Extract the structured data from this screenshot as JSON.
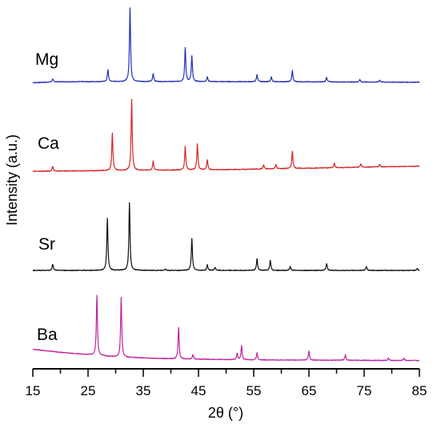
{
  "chart_data": {
    "type": "line",
    "xlabel": "2θ (°)",
    "ylabel": "Intensity (a.u.)",
    "xlim": [
      15,
      85
    ],
    "x_ticks": [
      15,
      25,
      35,
      45,
      55,
      65,
      75,
      85
    ],
    "y_axis_visible": false,
    "grid": false,
    "series": [
      {
        "name": "Mg",
        "color": "#2433b5",
        "baseline": [
          [
            15,
            0.6
          ],
          [
            20,
            1.8
          ],
          [
            30,
            2.0
          ],
          [
            45,
            2.0
          ],
          [
            60,
            1.8
          ],
          [
            70,
            1.6
          ],
          [
            85,
            1.2
          ]
        ],
        "peaks": [
          [
            18.6,
            4
          ],
          [
            28.6,
            15
          ],
          [
            32.6,
            92
          ],
          [
            36.8,
            10
          ],
          [
            42.6,
            42
          ],
          [
            43.8,
            32
          ],
          [
            46.6,
            6
          ],
          [
            55.6,
            9
          ],
          [
            58.2,
            6
          ],
          [
            62.0,
            14
          ],
          [
            68.2,
            6
          ],
          [
            74.2,
            3
          ],
          [
            77.8,
            2.5
          ]
        ]
      },
      {
        "name": "Ca",
        "color": "#d42727",
        "baseline": [
          [
            15,
            0.8
          ],
          [
            30,
            1.8
          ],
          [
            50,
            2.8
          ],
          [
            60,
            4.0
          ],
          [
            70,
            5.2
          ],
          [
            85,
            7.0
          ]
        ],
        "peaks": [
          [
            18.6,
            6
          ],
          [
            29.4,
            45
          ],
          [
            32.9,
            85
          ],
          [
            36.8,
            11
          ],
          [
            42.6,
            28
          ],
          [
            44.8,
            31
          ],
          [
            46.6,
            12
          ],
          [
            56.8,
            5
          ],
          [
            59.0,
            5
          ],
          [
            62.0,
            21
          ],
          [
            69.6,
            6
          ],
          [
            74.4,
            4
          ],
          [
            77.8,
            3
          ]
        ]
      },
      {
        "name": "Sr",
        "color": "#111111",
        "baseline": [
          [
            15,
            0.0
          ],
          [
            85,
            0.0
          ]
        ],
        "peaks": [
          [
            18.6,
            8
          ],
          [
            28.5,
            67
          ],
          [
            32.5,
            86
          ],
          [
            39.0,
            2
          ],
          [
            43.8,
            41
          ],
          [
            46.6,
            7
          ],
          [
            48.0,
            4
          ],
          [
            55.6,
            15
          ],
          [
            58.0,
            13
          ],
          [
            61.6,
            5
          ],
          [
            68.2,
            9
          ],
          [
            75.4,
            5
          ],
          [
            84.6,
            2.5
          ]
        ]
      },
      {
        "name": "Ba",
        "color": "#c0249f",
        "baseline": [
          [
            15,
            15
          ],
          [
            20,
            11
          ],
          [
            25,
            8
          ],
          [
            30,
            5
          ],
          [
            40,
            2.5
          ],
          [
            55,
            1.2
          ],
          [
            85,
            0.3
          ]
        ],
        "peaks": [
          [
            26.6,
            78
          ],
          [
            31.0,
            78
          ],
          [
            41.4,
            41
          ],
          [
            44.0,
            6
          ],
          [
            52.0,
            8
          ],
          [
            52.8,
            18
          ],
          [
            55.6,
            9
          ],
          [
            65.0,
            12
          ],
          [
            71.6,
            7
          ],
          [
            79.4,
            3
          ],
          [
            82.2,
            3
          ]
        ]
      }
    ]
  }
}
